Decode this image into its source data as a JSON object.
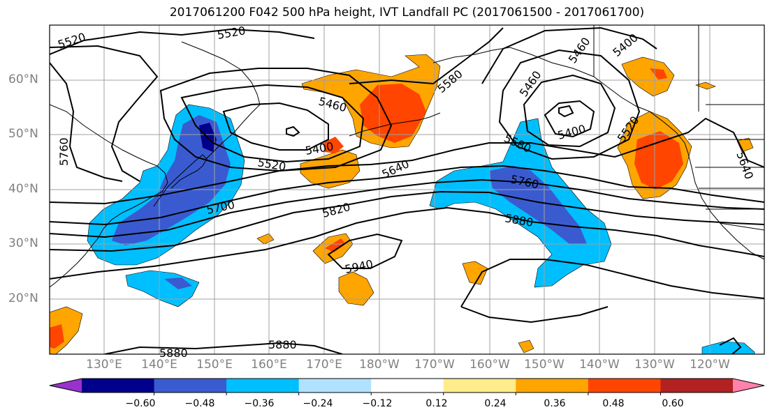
{
  "title": "2017061200 F042 500 hPa height, IVT Landfall PC (2017061500 - 2017061700)",
  "lat_labels": [
    "60°N",
    "50°N",
    "40°N",
    "30°N",
    "20°N"
  ],
  "lon_labels": [
    "130°E",
    "140°E",
    "150°E",
    "160°E",
    "170°E",
    "180°W",
    "170°W",
    "160°W",
    "150°W",
    "140°W",
    "130°W",
    "120°W"
  ],
  "contour_labels": [
    "5520",
    "5520",
    "5760",
    "5460",
    "5400",
    "5520",
    "5700",
    "5820",
    "5640",
    "5580",
    "5400",
    "5460",
    "5580",
    "5760",
    "5880",
    "5940",
    "5880",
    "5880",
    "5460",
    "5400",
    "5520",
    "5640"
  ],
  "colorbar": {
    "tick_labels": [
      "−0.60",
      "−0.48",
      "−0.36",
      "−0.24",
      "−0.12",
      "0.12",
      "0.24",
      "0.36",
      "0.48",
      "0.60"
    ],
    "colors": [
      "#9932cc",
      "#00008b",
      "#3a5bd0",
      "#00bfff",
      "#b0e2ff",
      "#ffffff",
      "#ffec8b",
      "#ffa500",
      "#ff4500",
      "#b22222",
      "#ff82ab"
    ]
  },
  "colors": {
    "contour": "#000000",
    "grid": "#a0a0a0",
    "coast": "#000000"
  }
}
